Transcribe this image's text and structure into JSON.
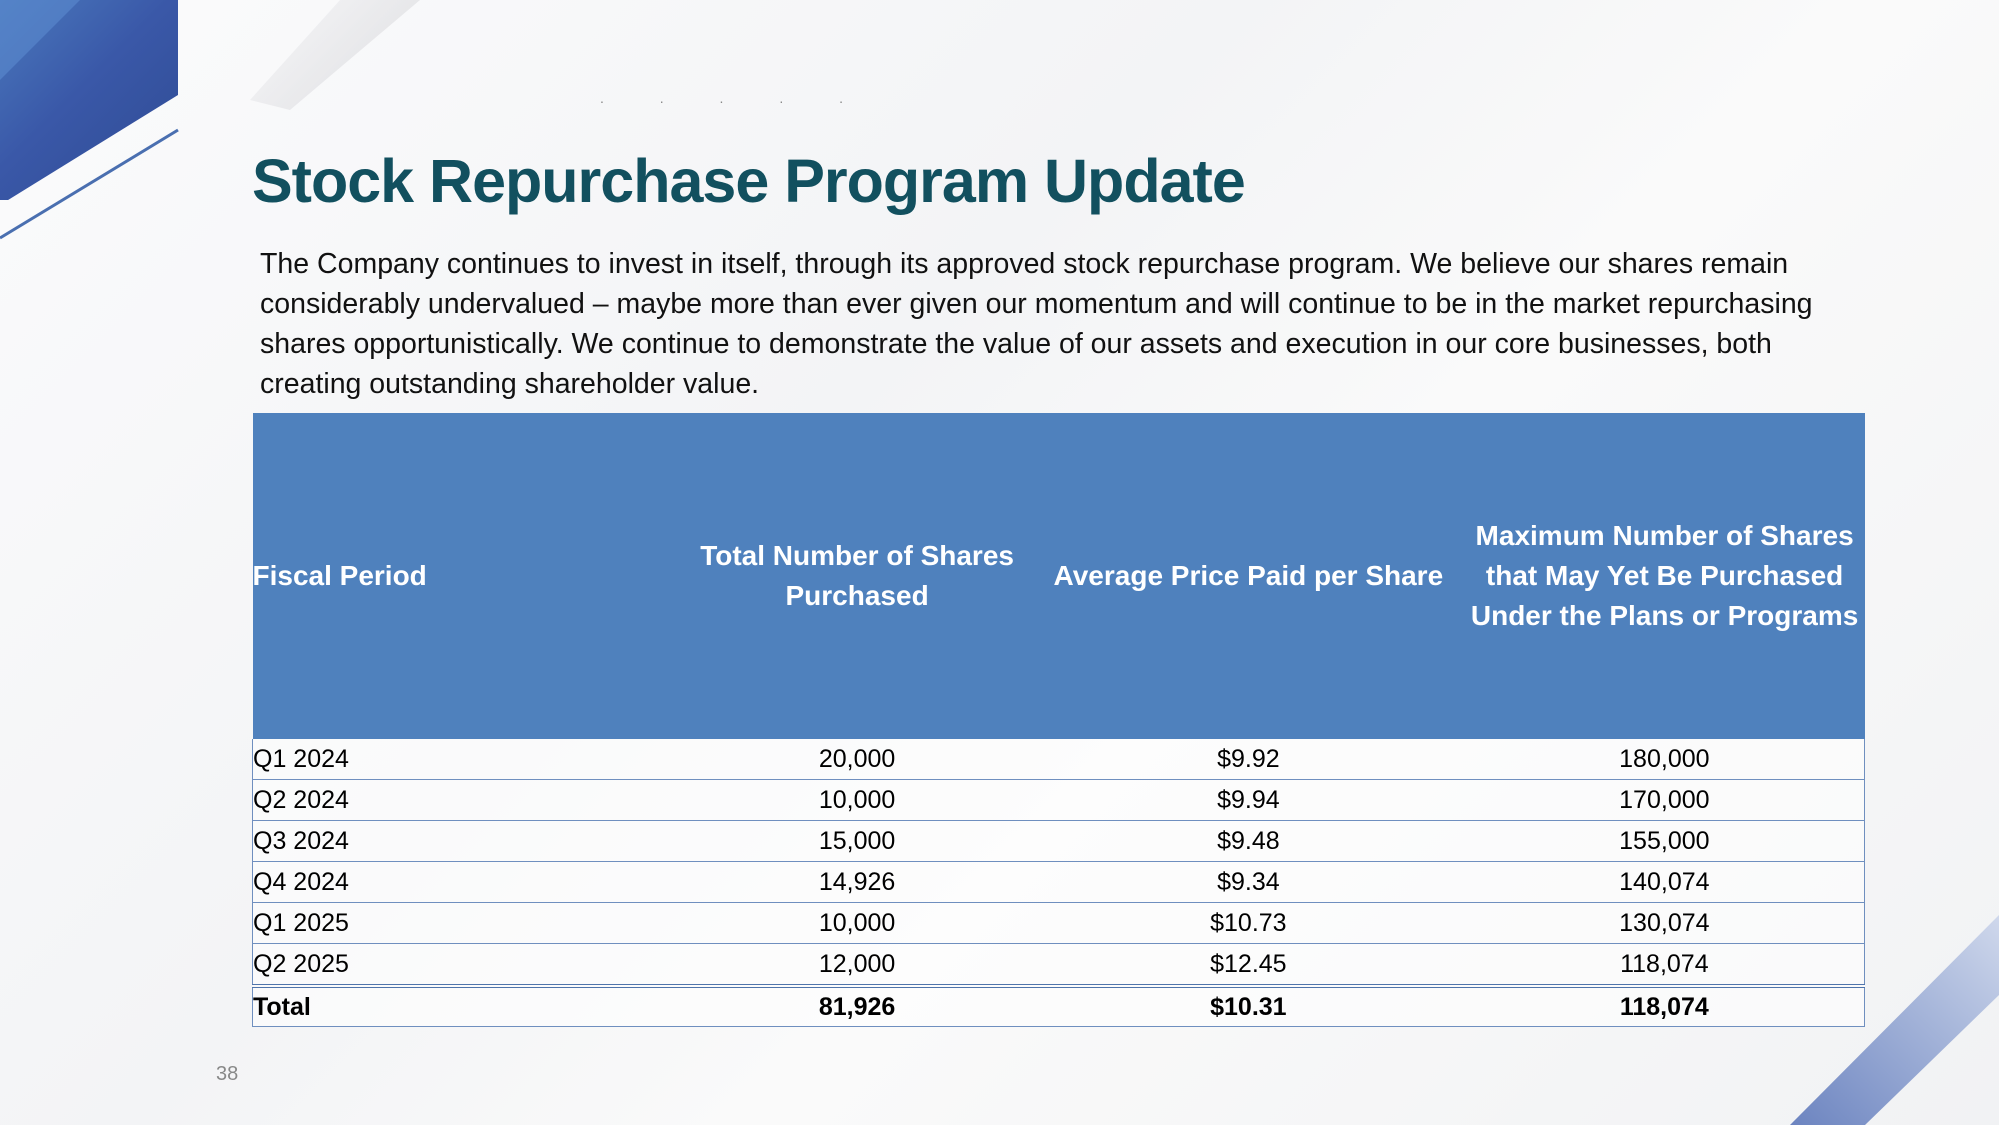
{
  "slide": {
    "title": "Stock Repurchase Program Update",
    "intro": "The Company continues to invest in itself, through its approved stock repurchase program. We believe our shares remain considerably undervalued – maybe more than ever given our momentum and will continue to be in the market repurchasing shares opportunistically.  We continue to demonstrate the value of our assets and execution in our core businesses, both creating outstanding shareholder value.",
    "decorative_dots": ". . . . .",
    "page_number": "38",
    "colors": {
      "title": "#12505f",
      "table_header": "#4f81bd",
      "accent_blue": "#3a58a8"
    }
  },
  "table": {
    "headers": [
      "Fiscal Period",
      "Total Number of Shares Purchased",
      "Average Price Paid per Share",
      "Maximum Number of Shares that May Yet Be Purchased Under the Plans or Programs"
    ],
    "rows": [
      [
        "Q1 2024",
        "20,000",
        "$9.92",
        "180,000"
      ],
      [
        "Q2 2024",
        "10,000",
        "$9.94",
        "170,000"
      ],
      [
        "Q3 2024",
        "15,000",
        "$9.48",
        "155,000"
      ],
      [
        "Q4 2024",
        "14,926",
        "$9.34",
        "140,074"
      ],
      [
        "Q1 2025",
        "10,000",
        "$10.73",
        "130,074"
      ],
      [
        "Q2 2025",
        "12,000",
        "$12.45",
        "118,074"
      ]
    ],
    "total": [
      "Total",
      "81,926",
      "$10.31",
      "118,074"
    ]
  }
}
